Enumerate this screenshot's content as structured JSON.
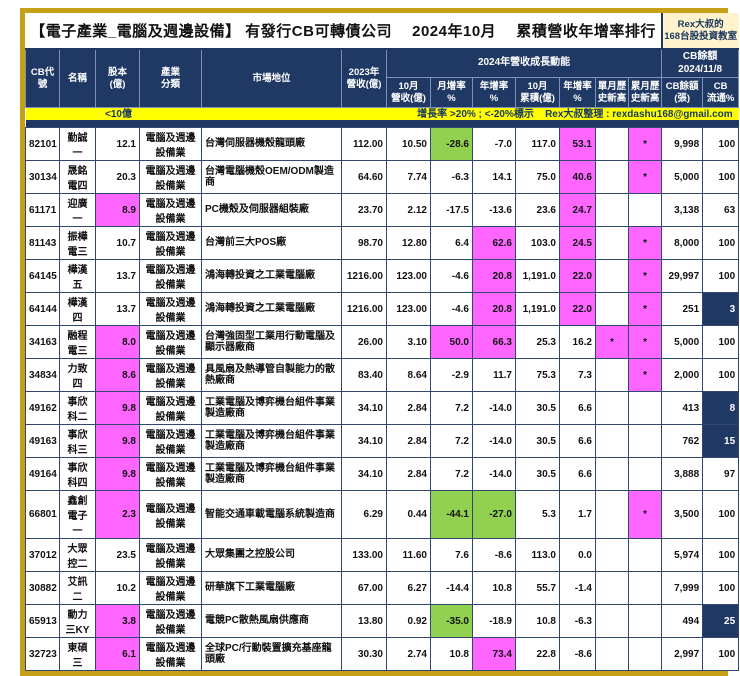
{
  "title": "【電子產業_電腦及週邊設備】 有發行CB可轉債公司　 2024年10月　 累積營收年增率排行",
  "brand": {
    "line1": "Rex大叔的",
    "line2": "168台股投資教室"
  },
  "headers": {
    "cb_code": "CB代號",
    "name": "名稱",
    "capital": "股本\n(億)",
    "industry": "產業\n分類",
    "market_position": "市場地位",
    "rev_2023": "2023年\n營收(億)",
    "growth_group": "2024年營收成長動能",
    "cb_group": "CB餘額\n2024/11/8",
    "oct_rev": "10月\n營收(億)",
    "mom": "月增率\n%",
    "yoy": "年增率\n%",
    "oct_cum": "10月\n累積(億)",
    "cum_yoy": "年增率\n%",
    "month_high": "單月歷\n史新高",
    "cum_high": "累月歷\n史新高",
    "cb_balance": "CB餘額\n(張)",
    "cb_float": "CB\n流通%"
  },
  "legend": {
    "capital_note": "<10億",
    "growth_note": "增長率 >20% ; <-20%標示",
    "credit": "Rex大叔整理 : rexdashu168@gmail.com"
  },
  "colors": {
    "navy": "#1F3864",
    "pink": "#FF66FF",
    "green": "#92D050",
    "yellow": "#FFFF00",
    "gold_frame": "#C6A117",
    "cream": "#FFF2CC",
    "credit_red": "#FF0000"
  },
  "rows": [
    {
      "code": "82101",
      "name": "勤誠一",
      "capital": "12.1",
      "industry": "電腦及週邊設備業",
      "position": "台灣伺服器機殼龍頭廠",
      "rev2023": "112.00",
      "oct_rev": "10.50",
      "mom": "-28.6",
      "mom_hl": "green",
      "yoy": "-7.0",
      "oct_cum": "117.0",
      "cum_yoy": "53.1",
      "cum_yoy_hl": "pink",
      "month_high": "",
      "cum_high": "*",
      "cum_high_hl": "pink",
      "cb_balance": "9,998",
      "cb_float": "100"
    },
    {
      "code": "30134",
      "name": "晟銘電四",
      "capital": "20.3",
      "industry": "電腦及週邊設備業",
      "position": "台灣電腦機殼OEM/ODM製造商",
      "rev2023": "64.60",
      "oct_rev": "7.74",
      "mom": "-6.3",
      "yoy": "14.1",
      "oct_cum": "75.0",
      "cum_yoy": "40.6",
      "cum_yoy_hl": "pink",
      "month_high": "",
      "cum_high": "*",
      "cum_high_hl": "pink",
      "cb_balance": "5,000",
      "cb_float": "100"
    },
    {
      "code": "61171",
      "name": "迎廣一",
      "capital": "8.9",
      "capital_hl": "pink",
      "industry": "電腦及週邊設備業",
      "position": "PC機殼及伺服器組裝廠",
      "rev2023": "23.70",
      "oct_rev": "2.12",
      "mom": "-17.5",
      "yoy": "-13.6",
      "oct_cum": "23.6",
      "cum_yoy": "24.7",
      "cum_yoy_hl": "pink",
      "month_high": "",
      "cum_high": "",
      "cb_balance": "3,138",
      "cb_float": "63"
    },
    {
      "code": "81143",
      "name": "振樺電三",
      "capital": "10.7",
      "industry": "電腦及週邊設備業",
      "position": "台灣前三大POS廠",
      "rev2023": "98.70",
      "oct_rev": "12.80",
      "mom": "6.4",
      "yoy": "62.6",
      "yoy_hl": "pink",
      "oct_cum": "103.0",
      "cum_yoy": "24.5",
      "cum_yoy_hl": "pink",
      "month_high": "",
      "cum_high": "*",
      "cum_high_hl": "pink",
      "cb_balance": "8,000",
      "cb_float": "100"
    },
    {
      "code": "64145",
      "name": "樺漢五",
      "capital": "13.7",
      "industry": "電腦及週邊設備業",
      "position": "鴻海轉投資之工業電腦廠",
      "rev2023": "1216.00",
      "oct_rev": "123.00",
      "mom": "-4.6",
      "yoy": "20.8",
      "yoy_hl": "pink",
      "oct_cum": "1,191.0",
      "cum_yoy": "22.0",
      "cum_yoy_hl": "pink",
      "month_high": "",
      "cum_high": "*",
      "cum_high_hl": "pink",
      "cb_balance": "29,997",
      "cb_float": "100"
    },
    {
      "code": "64144",
      "name": "樺漢四",
      "capital": "13.7",
      "industry": "電腦及週邊設備業",
      "position": "鴻海轉投資之工業電腦廠",
      "rev2023": "1216.00",
      "oct_rev": "123.00",
      "mom": "-4.6",
      "yoy": "20.8",
      "yoy_hl": "pink",
      "oct_cum": "1,191.0",
      "cum_yoy": "22.0",
      "cum_yoy_hl": "pink",
      "month_high": "",
      "cum_high": "*",
      "cum_high_hl": "pink",
      "cb_balance": "251",
      "cb_float": "3",
      "cb_float_hl": "navyfill"
    },
    {
      "code": "34163",
      "name": "融程電三",
      "capital": "8.0",
      "capital_hl": "pink",
      "industry": "電腦及週邊設備業",
      "position": "台灣強固型工業用行動電腦及顯示器廠商",
      "rev2023": "26.00",
      "oct_rev": "3.10",
      "mom": "50.0",
      "mom_hl": "pink",
      "yoy": "66.3",
      "yoy_hl": "pink",
      "oct_cum": "25.3",
      "cum_yoy": "16.2",
      "month_high": "*",
      "month_high_hl": "pink",
      "cum_high": "*",
      "cum_high_hl": "pink",
      "cb_balance": "5,000",
      "cb_float": "100",
      "tall": true
    },
    {
      "code": "34834",
      "name": "力致四",
      "capital": "8.6",
      "capital_hl": "pink",
      "industry": "電腦及週邊設備業",
      "position": "具風扇及熱導管自製能力的散熱廠商",
      "rev2023": "83.40",
      "oct_rev": "8.64",
      "mom": "-2.9",
      "yoy": "11.7",
      "oct_cum": "75.3",
      "cum_yoy": "7.3",
      "month_high": "",
      "cum_high": "*",
      "cum_high_hl": "pink",
      "cb_balance": "2,000",
      "cb_float": "100"
    },
    {
      "code": "49162",
      "name": "事欣科二",
      "capital": "9.8",
      "capital_hl": "pink",
      "industry": "電腦及週邊設備業",
      "position": "工業電腦及博弈機台組件事業製造廠商",
      "rev2023": "34.10",
      "oct_rev": "2.84",
      "mom": "7.2",
      "yoy": "-14.0",
      "oct_cum": "30.5",
      "cum_yoy": "6.6",
      "month_high": "",
      "cum_high": "",
      "cb_balance": "413",
      "cb_float": "8",
      "cb_float_hl": "navyfill",
      "tall": true
    },
    {
      "code": "49163",
      "name": "事欣科三",
      "capital": "9.8",
      "capital_hl": "pink",
      "industry": "電腦及週邊設備業",
      "position": "工業電腦及博弈機台組件事業製造廠商",
      "rev2023": "34.10",
      "oct_rev": "2.84",
      "mom": "7.2",
      "yoy": "-14.0",
      "oct_cum": "30.5",
      "cum_yoy": "6.6",
      "month_high": "",
      "cum_high": "",
      "cb_balance": "762",
      "cb_float": "15",
      "cb_float_hl": "navyfill",
      "tall": true
    },
    {
      "code": "49164",
      "name": "事欣科四",
      "capital": "9.8",
      "capital_hl": "pink",
      "industry": "電腦及週邊設備業",
      "position": "工業電腦及博弈機台組件事業製造廠商",
      "rev2023": "34.10",
      "oct_rev": "2.84",
      "mom": "7.2",
      "yoy": "-14.0",
      "oct_cum": "30.5",
      "cum_yoy": "6.6",
      "month_high": "",
      "cum_high": "",
      "cb_balance": "3,888",
      "cb_float": "97",
      "tall": true
    },
    {
      "code": "66801",
      "name": "鑫創電子一",
      "capital": "2.3",
      "capital_hl": "pink",
      "industry": "電腦及週邊設備業",
      "position": "智能交通車載電腦系統製造商",
      "rev2023": "6.29",
      "oct_rev": "0.44",
      "mom": "-44.1",
      "mom_hl": "green",
      "yoy": "-27.0",
      "yoy_hl": "green",
      "oct_cum": "5.3",
      "cum_yoy": "1.7",
      "month_high": "",
      "cum_high": "*",
      "cum_high_hl": "pink",
      "cb_balance": "3,500",
      "cb_float": "100"
    },
    {
      "code": "37012",
      "name": "大眾控二",
      "capital": "23.5",
      "industry": "電腦及週邊設備業",
      "position": "大眾集團之控股公司",
      "rev2023": "133.00",
      "oct_rev": "11.60",
      "mom": "7.6",
      "yoy": "-8.6",
      "oct_cum": "113.0",
      "cum_yoy": "0.0",
      "month_high": "",
      "cum_high": "",
      "cb_balance": "5,974",
      "cb_float": "100"
    },
    {
      "code": "30882",
      "name": "艾訊二",
      "capital": "10.2",
      "industry": "電腦及週邊設備業",
      "position": "研華旗下工業電腦廠",
      "rev2023": "67.00",
      "oct_rev": "6.27",
      "mom": "-14.4",
      "yoy": "10.8",
      "oct_cum": "55.7",
      "cum_yoy": "-1.4",
      "month_high": "",
      "cum_high": "",
      "cb_balance": "7,999",
      "cb_float": "100"
    },
    {
      "code": "65913",
      "name": "動力三KY",
      "capital": "3.8",
      "capital_hl": "pink",
      "industry": "電腦及週邊設備業",
      "position": "電競PC散熱風扇供應商",
      "rev2023": "13.80",
      "oct_rev": "0.92",
      "mom": "-35.0",
      "mom_hl": "green",
      "yoy": "-18.9",
      "oct_cum": "10.8",
      "cum_yoy": "-6.3",
      "month_high": "",
      "cum_high": "",
      "cb_balance": "494",
      "cb_float": "25",
      "cb_float_hl": "navyfill"
    },
    {
      "code": "32723",
      "name": "東碩三",
      "capital": "6.1",
      "capital_hl": "pink",
      "industry": "電腦及週邊設備業",
      "position": "全球PC/行動裝置擴充基座龍頭廠",
      "rev2023": "30.30",
      "oct_rev": "2.74",
      "mom": "10.8",
      "yoy": "73.4",
      "yoy_hl": "pink",
      "oct_cum": "22.8",
      "cum_yoy": "-8.6",
      "month_high": "",
      "cum_high": "",
      "cb_balance": "2,997",
      "cb_float": "100"
    }
  ]
}
